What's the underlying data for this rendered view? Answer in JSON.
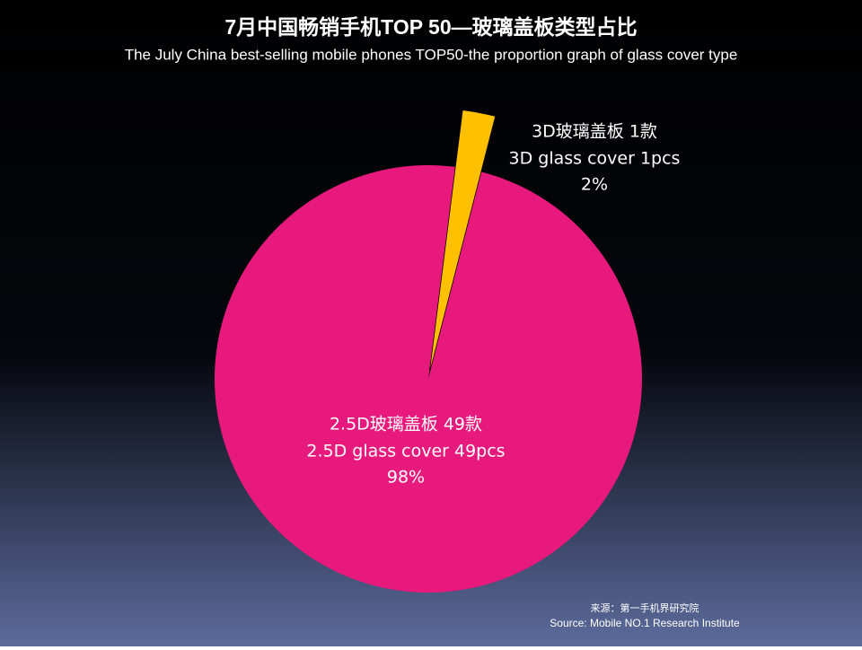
{
  "chart_data": {
    "type": "pie",
    "title": "7月中国畅销手机TOP 50—玻璃盖板类型占比",
    "subtitle": "The July China best-selling mobile phones TOP50-the proportion graph of glass cover type",
    "categories": [
      "3D玻璃盖板 1款",
      "2.5D玻璃盖板 49款"
    ],
    "category_details": [
      "3D glass cover 1pcs",
      "2.5D glass cover 49pcs"
    ],
    "values": [
      2,
      98
    ],
    "value_labels": [
      "2%",
      "98%"
    ],
    "colors": [
      "#ffc000",
      "#e8197d"
    ],
    "source": [
      "来源：第一手机界研究院",
      "Source: Mobile NO.1 Research Institute"
    ]
  }
}
